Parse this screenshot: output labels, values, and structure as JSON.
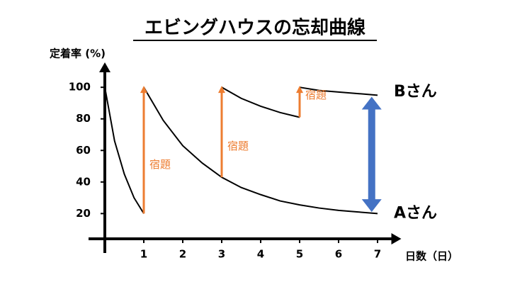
{
  "chart_data": {
    "type": "line",
    "title": "エビングハウスの忘却曲線",
    "y_label": "定着率 (%)",
    "x_label": "日数（日）",
    "xlim": [
      0,
      7.5
    ],
    "xticks": [
      1,
      2,
      3,
      4,
      5,
      6,
      7
    ],
    "ylim": [
      4,
      114
    ],
    "yticks": [
      20,
      40,
      60,
      80,
      100
    ],
    "line_color": "#000000",
    "segments": [
      {
        "x": [
          0,
          0.25,
          0.5,
          0.75,
          1
        ],
        "values": [
          100,
          66,
          45,
          30,
          20
        ]
      },
      {
        "x": [
          1,
          1.5,
          2,
          2.5,
          3,
          3.5,
          4,
          4.5,
          5,
          5.5,
          6,
          6.5,
          7
        ],
        "values": [
          100,
          79,
          63,
          52,
          43,
          36.5,
          32,
          28,
          25.5,
          23.5,
          22,
          21,
          20
        ]
      },
      {
        "x": [
          3,
          3.5,
          4,
          4.5,
          5
        ],
        "values": [
          100,
          93,
          88,
          84,
          81
        ]
      },
      {
        "x": [
          5,
          5.5,
          6,
          6.5,
          7
        ],
        "values": [
          100,
          98,
          97,
          96,
          95
        ]
      }
    ],
    "reviews": {
      "color": "#ed7d31",
      "items": [
        {
          "x": 1,
          "from": 20,
          "to": 100,
          "label": "宿題"
        },
        {
          "x": 3,
          "from": 43,
          "to": 100,
          "label": "宿題"
        },
        {
          "x": 5,
          "from": 81,
          "to": 100,
          "label": "宿題"
        }
      ]
    },
    "difference": {
      "x": 6.85,
      "from": 21,
      "to": 94,
      "color": "#4472c4"
    },
    "series_labels": [
      {
        "label": "Bさん",
        "value": 97
      },
      {
        "label": "Aさん",
        "value": 20
      }
    ]
  }
}
